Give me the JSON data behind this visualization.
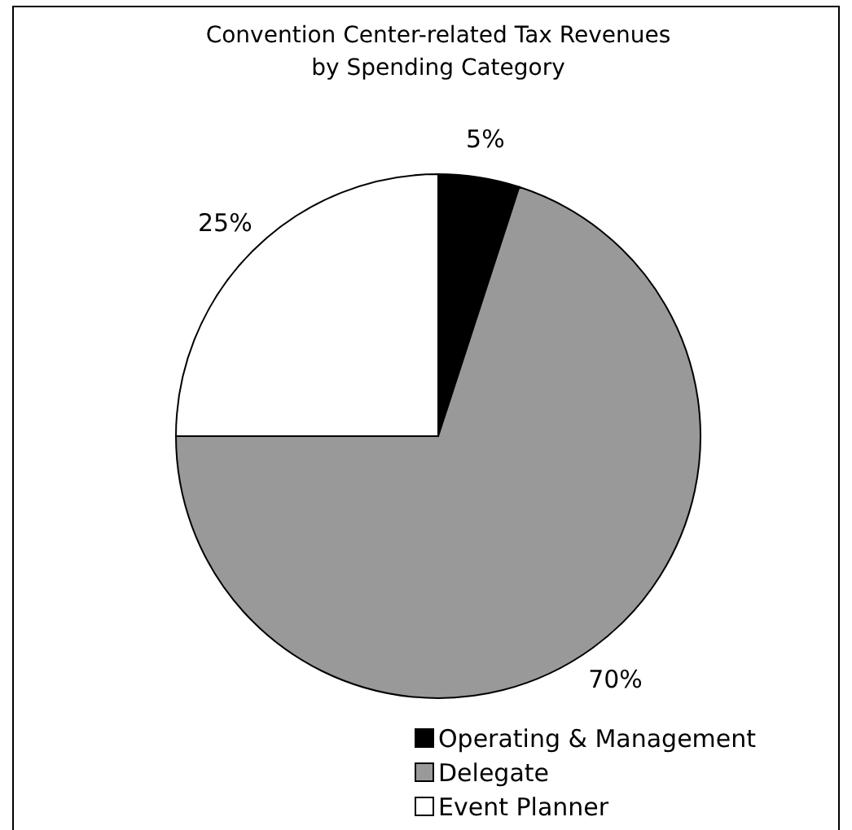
{
  "chart_data": {
    "type": "pie",
    "title": "Convention Center-related Tax Revenues\nby Spending Category",
    "categories": [
      "Operating & Management",
      "Delegate",
      "Event Planner"
    ],
    "values": [
      5,
      70,
      25
    ],
    "colors": [
      "#000000",
      "#999999",
      "#ffffff"
    ],
    "value_labels": [
      "5%",
      "70%",
      "25%"
    ],
    "legend": "bottom"
  }
}
